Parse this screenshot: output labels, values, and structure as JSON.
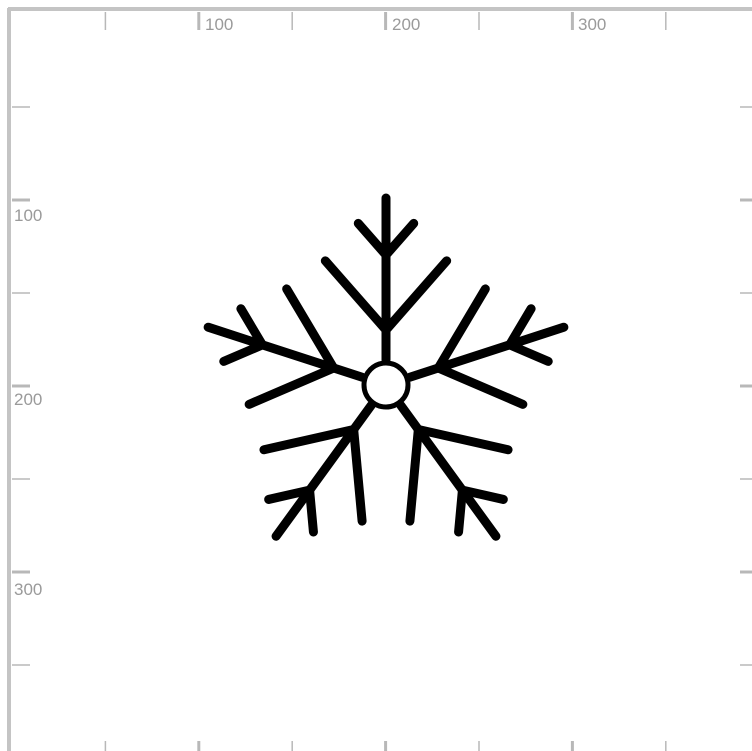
{
  "ruler": {
    "x_labels": [
      {
        "value": 100,
        "text": "100"
      },
      {
        "value": 200,
        "text": "200"
      },
      {
        "value": 300,
        "text": "300"
      }
    ],
    "y_labels": [
      {
        "value": 100,
        "text": "100"
      },
      {
        "value": 200,
        "text": "200"
      },
      {
        "value": 300,
        "text": "300"
      }
    ],
    "minor_step": 50,
    "major_step": 100,
    "color": "#9a9a9a"
  },
  "drawing": {
    "shape": "snowflake",
    "arm_count": 5,
    "stroke_color": "#000000",
    "center_ring": true
  }
}
